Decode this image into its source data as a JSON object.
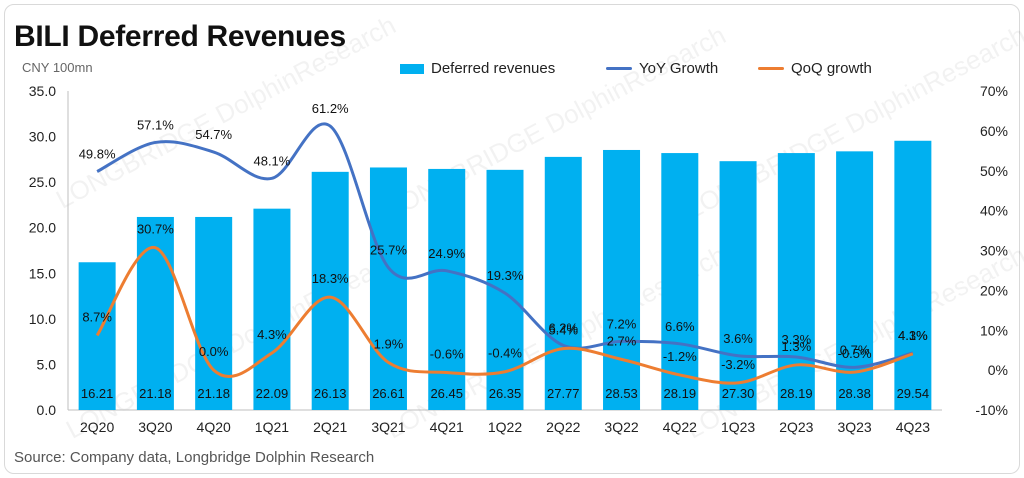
{
  "title": "BILI Deferred Revenues",
  "subtitle": "CNY 100mn",
  "source": "Source: Company data, Longbridge Dolphin Research",
  "watermark": "LONGBRIDGE DolphinResearch",
  "colors": {
    "bar": "#00b0f0",
    "yoy": "#4472c4",
    "qoq": "#ed7d31",
    "text": "#222222"
  },
  "chart_data": {
    "type": "bar",
    "categories": [
      "2Q20",
      "3Q20",
      "4Q20",
      "1Q21",
      "2Q21",
      "3Q21",
      "4Q21",
      "1Q22",
      "2Q22",
      "3Q22",
      "4Q22",
      "1Q23",
      "2Q23",
      "3Q23",
      "4Q23"
    ],
    "series": [
      {
        "name": "Deferred revenues",
        "type": "bar",
        "axis": "left",
        "values": [
          16.21,
          21.18,
          21.18,
          22.09,
          26.13,
          26.61,
          26.45,
          26.35,
          27.77,
          28.53,
          28.19,
          27.3,
          28.19,
          28.38,
          29.54
        ],
        "labels": [
          "16.21",
          "21.18",
          "21.18",
          "22.09",
          "26.13",
          "26.61",
          "26.45",
          "26.35",
          "27.77",
          "28.53",
          "28.19",
          "27.30",
          "28.19",
          "28.38",
          "29.54"
        ]
      },
      {
        "name": "YoY Growth",
        "type": "line",
        "axis": "right",
        "values": [
          49.8,
          57.1,
          54.7,
          48.1,
          61.2,
          25.7,
          24.9,
          19.3,
          6.2,
          7.2,
          6.6,
          3.6,
          3.3,
          0.7,
          4.3
        ],
        "labels": [
          "49.8%",
          "57.1%",
          "54.7%",
          "48.1%",
          "61.2%",
          "25.7%",
          "24.9%",
          "19.3%",
          "6.2%",
          "7.2%",
          "6.6%",
          "3.6%",
          "3.3%",
          "0.7%",
          "4.3%"
        ]
      },
      {
        "name": "QoQ growth",
        "type": "line",
        "axis": "right",
        "values": [
          8.7,
          30.7,
          0.0,
          4.3,
          18.3,
          1.9,
          -0.6,
          -0.4,
          5.4,
          2.7,
          -1.2,
          -3.2,
          1.3,
          -0.5,
          4.1
        ],
        "labels": [
          "8.7%",
          "30.7%",
          "0.0%",
          "4.3%",
          "18.3%",
          "1.9%",
          "-0.6%",
          "-0.4%",
          "5.4%",
          "2.7%",
          "-1.2%",
          "-3.2%",
          "1.3%",
          "-0.5%",
          "4.1%"
        ]
      }
    ],
    "left_axis": {
      "ticks": [
        "0.0",
        "5.0",
        "10.0",
        "15.0",
        "20.0",
        "25.0",
        "30.0",
        "35.0"
      ],
      "ylim": [
        0,
        35
      ]
    },
    "right_axis": {
      "ticks": [
        "-10%",
        "0%",
        "10%",
        "20%",
        "30%",
        "40%",
        "50%",
        "60%",
        "70%"
      ],
      "ylim": [
        -10,
        70
      ]
    },
    "grid": false,
    "legend_position": "top-center"
  }
}
